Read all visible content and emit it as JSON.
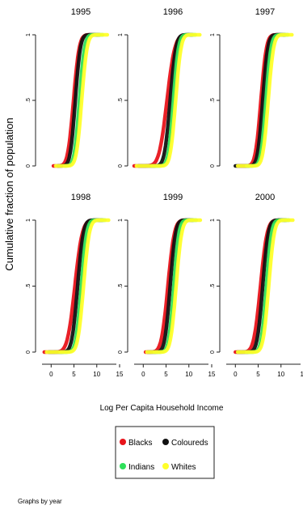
{
  "chart_data": {
    "type": "line",
    "ylabel": "Cumulative fraction of population",
    "xlabel": "Log Per Capita Household Income",
    "note": "Graphs by year",
    "xlim": [
      -2,
      15
    ],
    "ylim": [
      0,
      1
    ],
    "x_ticks": [
      "0",
      "5",
      "10",
      "15"
    ],
    "y_ticks": [
      "0",
      ".5",
      "1"
    ],
    "legend": {
      "placement": "bottom-center",
      "columns": 2
    },
    "colors": {
      "Blacks": "#e8141b",
      "Coloureds": "#111111",
      "Indians": "#2ee05a",
      "Whites": "#ffff2a"
    },
    "series_names": [
      "Blacks",
      "Coloureds",
      "Indians",
      "Whites"
    ],
    "panels": [
      {
        "title": "1995",
        "series": [
          {
            "name": "Blacks",
            "median": 4.9,
            "spread": 0.62,
            "min": 0.5,
            "max": 10.2
          },
          {
            "name": "Coloureds",
            "median": 5.3,
            "spread": 0.55,
            "min": 1.5,
            "max": 10.6
          },
          {
            "name": "Indians",
            "median": 6.2,
            "spread": 0.55,
            "min": 3.0,
            "max": 11.3
          },
          {
            "name": "Whites",
            "median": 6.7,
            "spread": 0.58,
            "min": 1.0,
            "max": 12.3
          }
        ]
      },
      {
        "title": "1996",
        "series": [
          {
            "name": "Blacks",
            "median": 5.2,
            "spread": 0.85,
            "min": -2.0,
            "max": 10.5
          },
          {
            "name": "Coloureds",
            "median": 5.9,
            "spread": 0.62,
            "min": -1.0,
            "max": 10.8
          },
          {
            "name": "Indians",
            "median": 6.6,
            "spread": 0.55,
            "min": 2.0,
            "max": 11.4
          },
          {
            "name": "Whites",
            "median": 7.1,
            "spread": 0.58,
            "min": -1.5,
            "max": 12.4
          }
        ]
      },
      {
        "title": "1997",
        "series": [
          {
            "name": "Blacks",
            "median": 5.6,
            "spread": 0.6,
            "min": 0.5,
            "max": 10.6
          },
          {
            "name": "Coloureds",
            "median": 6.0,
            "spread": 0.55,
            "min": 0.0,
            "max": 10.9
          },
          {
            "name": "Indians",
            "median": 6.7,
            "spread": 0.55,
            "min": 2.5,
            "max": 11.5
          },
          {
            "name": "Whites",
            "median": 7.2,
            "spread": 0.58,
            "min": 0.5,
            "max": 12.4
          }
        ]
      },
      {
        "title": "1998",
        "series": [
          {
            "name": "Blacks",
            "median": 5.2,
            "spread": 0.8,
            "min": -1.5,
            "max": 11.0
          },
          {
            "name": "Coloureds",
            "median": 5.8,
            "spread": 0.62,
            "min": -0.5,
            "max": 11.3
          },
          {
            "name": "Indians",
            "median": 6.6,
            "spread": 0.58,
            "min": 2.0,
            "max": 11.8
          },
          {
            "name": "Whites",
            "median": 7.1,
            "spread": 0.62,
            "min": -1.0,
            "max": 12.6
          }
        ]
      },
      {
        "title": "1999",
        "series": [
          {
            "name": "Blacks",
            "median": 5.4,
            "spread": 0.7,
            "min": 0.5,
            "max": 10.6
          },
          {
            "name": "Coloureds",
            "median": 5.9,
            "spread": 0.58,
            "min": 1.0,
            "max": 10.9
          },
          {
            "name": "Indians",
            "median": 6.7,
            "spread": 0.55,
            "min": 2.5,
            "max": 11.6
          },
          {
            "name": "Whites",
            "median": 7.2,
            "spread": 0.6,
            "min": 0.8,
            "max": 12.5
          }
        ]
      },
      {
        "title": "2000",
        "series": [
          {
            "name": "Blacks",
            "median": 5.5,
            "spread": 0.72,
            "min": 0.0,
            "max": 10.8
          },
          {
            "name": "Coloureds",
            "median": 6.0,
            "spread": 0.6,
            "min": 0.5,
            "max": 11.1
          },
          {
            "name": "Indians",
            "median": 6.8,
            "spread": 0.55,
            "min": 2.5,
            "max": 11.7
          },
          {
            "name": "Whites",
            "median": 7.3,
            "spread": 0.6,
            "min": 0.5,
            "max": 12.6
          }
        ]
      }
    ]
  }
}
